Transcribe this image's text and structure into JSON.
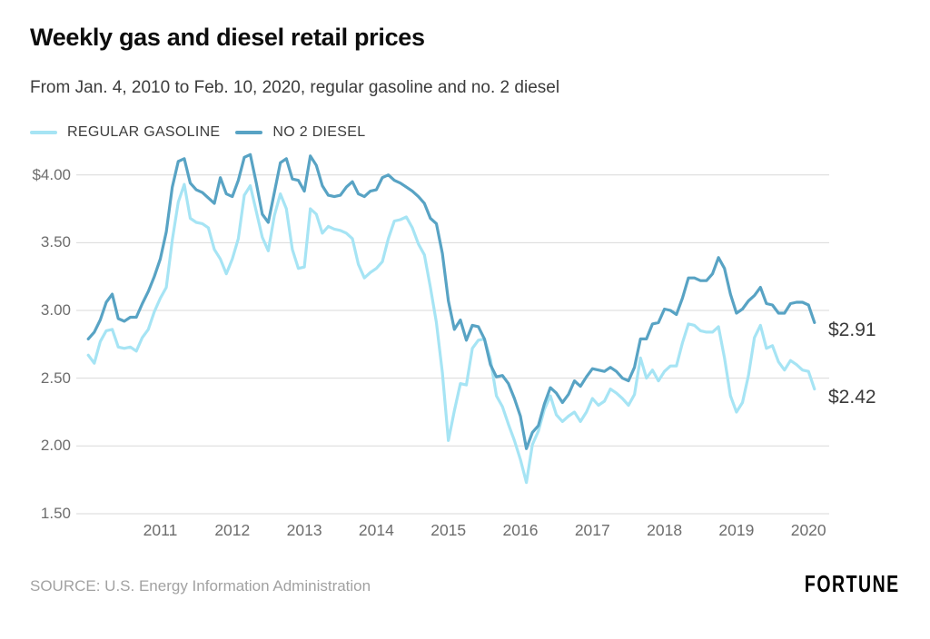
{
  "header": {
    "title": "Weekly gas and diesel retail prices",
    "subtitle": "From Jan. 4, 2010 to Feb. 10, 2020, regular gasoline and no. 2 diesel"
  },
  "footer": {
    "source": "SOURCE: U.S. Energy Information Administration",
    "brand": "FORTUNE"
  },
  "colors": {
    "gasoline": "#a6e4f4",
    "diesel": "#58a3c4",
    "gridline": "#d9d9d9"
  },
  "chart_data": {
    "type": "line",
    "title": "Weekly gas and diesel retail prices",
    "x_unit": "months since Jan 2010 (weekly retail price, $/gal, approximated at monthly resolution)",
    "x_range": [
      "2010-01-04",
      "2020-02-10"
    ],
    "ylim": [
      1.5,
      4.2
    ],
    "grid": "horizontal",
    "legend_position": "top-left",
    "yticks": [
      {
        "value": 4.0,
        "label": "$4.00"
      },
      {
        "value": 3.5,
        "label": "3.50"
      },
      {
        "value": 3.0,
        "label": "3.00"
      },
      {
        "value": 2.5,
        "label": "2.50"
      },
      {
        "value": 2.0,
        "label": "2.00"
      },
      {
        "value": 1.5,
        "label": "1.50"
      }
    ],
    "xticks": [
      {
        "year": 2011,
        "label": "2011"
      },
      {
        "year": 2012,
        "label": "2012"
      },
      {
        "year": 2013,
        "label": "2013"
      },
      {
        "year": 2014,
        "label": "2014"
      },
      {
        "year": 2015,
        "label": "2015"
      },
      {
        "year": 2016,
        "label": "2016"
      },
      {
        "year": 2017,
        "label": "2017"
      },
      {
        "year": 2018,
        "label": "2018"
      },
      {
        "year": 2019,
        "label": "2019"
      },
      {
        "year": 2020,
        "label": "2020"
      }
    ],
    "series": [
      {
        "name": "REGULAR GASOLINE",
        "color": "#a6e4f4",
        "end_label": "$2.42",
        "values": [
          2.67,
          2.61,
          2.77,
          2.85,
          2.86,
          2.73,
          2.72,
          2.73,
          2.7,
          2.8,
          2.86,
          2.99,
          3.09,
          3.17,
          3.52,
          3.8,
          3.93,
          3.68,
          3.65,
          3.64,
          3.61,
          3.45,
          3.38,
          3.27,
          3.38,
          3.53,
          3.85,
          3.92,
          3.73,
          3.54,
          3.44,
          3.7,
          3.86,
          3.75,
          3.45,
          3.31,
          3.32,
          3.75,
          3.71,
          3.57,
          3.62,
          3.6,
          3.59,
          3.57,
          3.53,
          3.34,
          3.24,
          3.28,
          3.31,
          3.36,
          3.53,
          3.66,
          3.67,
          3.69,
          3.61,
          3.49,
          3.41,
          3.17,
          2.91,
          2.54,
          2.04,
          2.26,
          2.46,
          2.45,
          2.72,
          2.78,
          2.79,
          2.64,
          2.37,
          2.29,
          2.16,
          2.04,
          1.9,
          1.73,
          2.01,
          2.11,
          2.27,
          2.37,
          2.23,
          2.18,
          2.22,
          2.25,
          2.18,
          2.25,
          2.35,
          2.3,
          2.33,
          2.42,
          2.39,
          2.35,
          2.3,
          2.38,
          2.65,
          2.5,
          2.56,
          2.48,
          2.55,
          2.59,
          2.59,
          2.76,
          2.9,
          2.89,
          2.85,
          2.84,
          2.84,
          2.88,
          2.65,
          2.37,
          2.25,
          2.32,
          2.52,
          2.8,
          2.89,
          2.72,
          2.74,
          2.62,
          2.56,
          2.63,
          2.6,
          2.56,
          2.55,
          2.42
        ]
      },
      {
        "name": "NO 2 DIESEL",
        "color": "#58a3c4",
        "end_label": "$2.91",
        "values": [
          2.79,
          2.84,
          2.93,
          3.06,
          3.12,
          2.94,
          2.92,
          2.95,
          2.95,
          3.05,
          3.14,
          3.25,
          3.38,
          3.58,
          3.91,
          4.1,
          4.12,
          3.94,
          3.89,
          3.87,
          3.83,
          3.79,
          3.98,
          3.86,
          3.84,
          3.96,
          4.13,
          4.15,
          3.94,
          3.71,
          3.65,
          3.87,
          4.09,
          4.12,
          3.97,
          3.96,
          3.88,
          4.14,
          4.07,
          3.92,
          3.85,
          3.84,
          3.85,
          3.91,
          3.95,
          3.86,
          3.84,
          3.88,
          3.89,
          3.98,
          4.0,
          3.96,
          3.94,
          3.91,
          3.88,
          3.84,
          3.79,
          3.68,
          3.64,
          3.42,
          3.07,
          2.86,
          2.93,
          2.78,
          2.89,
          2.88,
          2.79,
          2.6,
          2.51,
          2.52,
          2.46,
          2.35,
          2.22,
          1.98,
          2.1,
          2.15,
          2.31,
          2.43,
          2.39,
          2.32,
          2.38,
          2.48,
          2.44,
          2.51,
          2.57,
          2.56,
          2.55,
          2.58,
          2.55,
          2.5,
          2.48,
          2.58,
          2.79,
          2.79,
          2.9,
          2.91,
          3.01,
          3.0,
          2.97,
          3.09,
          3.24,
          3.24,
          3.22,
          3.22,
          3.27,
          3.39,
          3.31,
          3.12,
          2.98,
          3.01,
          3.07,
          3.11,
          3.17,
          3.05,
          3.04,
          2.98,
          2.98,
          3.05,
          3.06,
          3.06,
          3.04,
          2.91
        ]
      }
    ]
  }
}
